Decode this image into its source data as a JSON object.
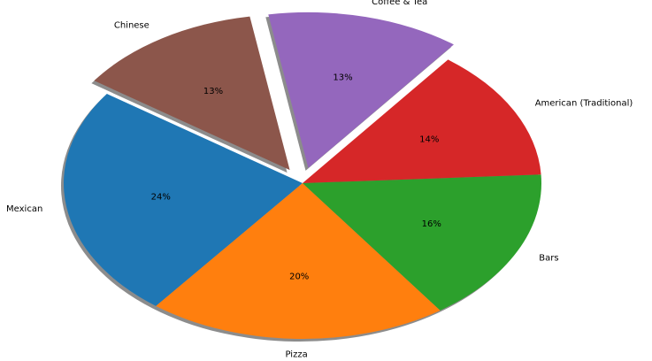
{
  "chart_data": {
    "type": "pie",
    "title": "",
    "shadow": true,
    "start_angle_deg": 145,
    "direction": "counterclockwise",
    "slices": [
      {
        "label": "Mexican",
        "pct_label": "24%",
        "value": 24.2,
        "color": "#1f77b4",
        "explode": 0
      },
      {
        "label": "Pizza",
        "pct_label": "20%",
        "value": 20.3,
        "color": "#ff7f0e",
        "explode": 0
      },
      {
        "label": "Bars",
        "pct_label": "16%",
        "value": 16.1,
        "color": "#2ca02c",
        "explode": 0
      },
      {
        "label": "American (Traditional)",
        "pct_label": "14%",
        "value": 13.7,
        "color": "#d62728",
        "explode": 0
      },
      {
        "label": "Coffee & Tea",
        "pct_label": "13%",
        "value": 13.1,
        "color": "#9467bd",
        "explode": 0.1
      },
      {
        "label": "Chinese",
        "pct_label": "13%",
        "value": 12.6,
        "color": "#8c564b",
        "explode": 0.1
      }
    ]
  }
}
